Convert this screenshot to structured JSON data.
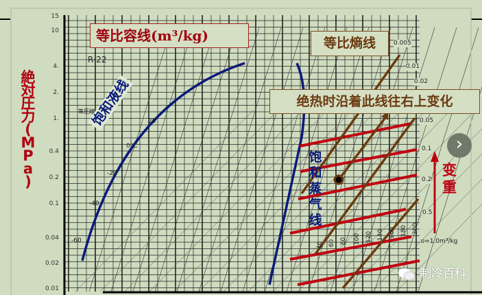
{
  "diagram": {
    "refrigerant": "R-22",
    "isobar_label": "等圧線",
    "y_axis_label_chars": [
      "絶",
      "対",
      "圧",
      "力",
      "(",
      "M",
      "P",
      "a",
      ")"
    ],
    "y_ticks": [
      "15",
      "10",
      "4.",
      "2.",
      "1.",
      "0.4",
      "0.2",
      "0.1",
      "0.04",
      "0.02",
      "0.01"
    ],
    "specific_volume_labels": [
      "0.005",
      "0.01",
      "0.02",
      "0.05",
      "0.1",
      "0.2",
      "0.5"
    ],
    "specific_volume_unit_label": "υ=1.0m³/kg",
    "temperature_labels": [
      "-60",
      "-40",
      "-20",
      "0°C",
      "20"
    ],
    "superheat_temps": [
      "40",
      "60",
      "80",
      "100",
      "120",
      "140",
      "160",
      "180",
      "200"
    ]
  },
  "annotations": {
    "isochoric": "等比容线(m³/kg)",
    "isentropic": "等比熵线",
    "adiabatic": "绝热时沿着此线往右上变化",
    "saturated_liquid": "饱和液线",
    "saturated_vapor_chars": [
      "饱",
      "和",
      "蒸",
      "气",
      "线"
    ],
    "heavier_chars": [
      "变",
      "重"
    ]
  },
  "watermark": {
    "text": "制冷百科",
    "icon": "wechat-icon"
  },
  "nav": {
    "next_icon": "chevron-right-icon",
    "next_label": "›"
  },
  "colors": {
    "annotation_red": "#c00010",
    "curve_blue": "#0a1a7a",
    "isentrope_brown": "#6b3a10",
    "background": "#cfdcbf"
  }
}
